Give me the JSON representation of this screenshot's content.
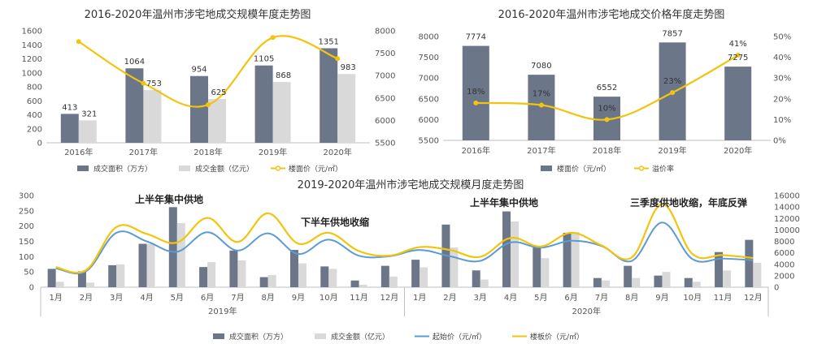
{
  "colors": {
    "bar_dark": "#6b7689",
    "bar_light": "#d9d9d9",
    "line_gold": "#f2c40f",
    "line_blue": "#5b9bd5"
  },
  "chart_data": [
    {
      "type": "bar",
      "title": "2016-2020年温州市涉宅地成交规模年度走势图",
      "categories": [
        "2016年",
        "2017年",
        "2018年",
        "2019年",
        "2020年"
      ],
      "series": [
        {
          "name": "成交面积（万方）",
          "axis": "left",
          "values": [
            413,
            1064,
            954,
            1105,
            1351
          ]
        },
        {
          "name": "成交金额（亿元）",
          "axis": "left",
          "values": [
            321,
            753,
            625,
            868,
            983
          ]
        },
        {
          "name": "楼面价（元/㎡）",
          "axis": "right",
          "type": "line",
          "values": [
            7760,
            6830,
            6350,
            7850,
            7380
          ]
        }
      ],
      "ylim": [
        0,
        1600
      ],
      "y_ticks": [
        "0",
        "200",
        "400",
        "600",
        "800",
        "1000",
        "1200",
        "1400",
        "1600"
      ],
      "y2lim": [
        5500,
        8000
      ],
      "y2_ticks": [
        "5500",
        "6000",
        "6500",
        "7000",
        "7500",
        "8000"
      ],
      "legend": "bottom"
    },
    {
      "type": "bar",
      "title": "2016-2020年温州市涉宅地成交价格年度走势图",
      "categories": [
        "2016年",
        "2017年",
        "2018年",
        "2019年",
        "2020年"
      ],
      "series": [
        {
          "name": "楼面价（元/㎡）",
          "axis": "left",
          "values": [
            7774,
            7080,
            6552,
            7857,
            7275
          ]
        },
        {
          "name": "溢价率",
          "axis": "right",
          "type": "line",
          "values": [
            18,
            17,
            10,
            23,
            41
          ],
          "labels": [
            "18%",
            "17%",
            "10%",
            "23%",
            "41%"
          ]
        }
      ],
      "ylim": [
        5500,
        8000
      ],
      "y_ticks": [
        "5500",
        "6000",
        "6500",
        "7000",
        "7500",
        "8000"
      ],
      "y2lim": [
        0,
        50
      ],
      "y2_ticks": [
        "0%",
        "10%",
        "20%",
        "30%",
        "40%",
        "50%"
      ],
      "legend": "bottom"
    },
    {
      "type": "bar",
      "title": "2019-2020年温州市涉宅地成交规模月度走势图",
      "categories": [
        "1月",
        "2月",
        "3月",
        "4月",
        "5月",
        "6月",
        "7月",
        "8月",
        "9月",
        "10月",
        "11月",
        "12月",
        "1月",
        "2月",
        "3月",
        "4月",
        "5月",
        "6月",
        "7月",
        "8月",
        "9月",
        "10月",
        "11月",
        "12月"
      ],
      "groups": [
        "2019年",
        "2020年"
      ],
      "series": [
        {
          "name": "成交面积（万方）",
          "axis": "left",
          "values": [
            60,
            52,
            72,
            142,
            262,
            66,
            120,
            33,
            122,
            68,
            22,
            70,
            90,
            205,
            55,
            248,
            132,
            178,
            30,
            70,
            38,
            30,
            115,
            155
          ]
        },
        {
          "name": "成交金额（亿元）",
          "axis": "left",
          "values": [
            18,
            15,
            75,
            142,
            210,
            82,
            88,
            40,
            78,
            60,
            8,
            35,
            65,
            130,
            25,
            215,
            95,
            180,
            22,
            30,
            50,
            18,
            55,
            80
          ]
        },
        {
          "name": "起始价（元/㎡）",
          "axis": "right",
          "type": "line",
          "values": [
            3300,
            2800,
            9500,
            8000,
            6200,
            9600,
            6400,
            9400,
            5800,
            8300,
            5500,
            5400,
            6500,
            5400,
            4600,
            7800,
            6900,
            8100,
            7200,
            4600,
            11300,
            4900,
            5000,
            4700
          ]
        },
        {
          "name": "楼板价（元/㎡）",
          "axis": "right",
          "type": "line",
          "values": [
            3500,
            3000,
            10500,
            9300,
            7800,
            12100,
            7900,
            12900,
            7600,
            9500,
            6300,
            5500,
            7000,
            6500,
            5300,
            8600,
            7100,
            9500,
            7300,
            5200,
            14500,
            5800,
            5600,
            5100
          ]
        }
      ],
      "ylim": [
        0,
        300
      ],
      "y_ticks": [
        "0",
        "50",
        "100",
        "150",
        "200",
        "250",
        "300"
      ],
      "y2lim": [
        0,
        16000
      ],
      "y2_ticks": [
        "0",
        "2000",
        "4000",
        "6000",
        "8000",
        "10000",
        "12000",
        "14000",
        "16000"
      ],
      "annotations": [
        "上半年集中供地",
        "下半年供地收缩",
        "上半年集中供地",
        "三季度供地收缩，年底反弹"
      ],
      "legend": "bottom"
    }
  ]
}
